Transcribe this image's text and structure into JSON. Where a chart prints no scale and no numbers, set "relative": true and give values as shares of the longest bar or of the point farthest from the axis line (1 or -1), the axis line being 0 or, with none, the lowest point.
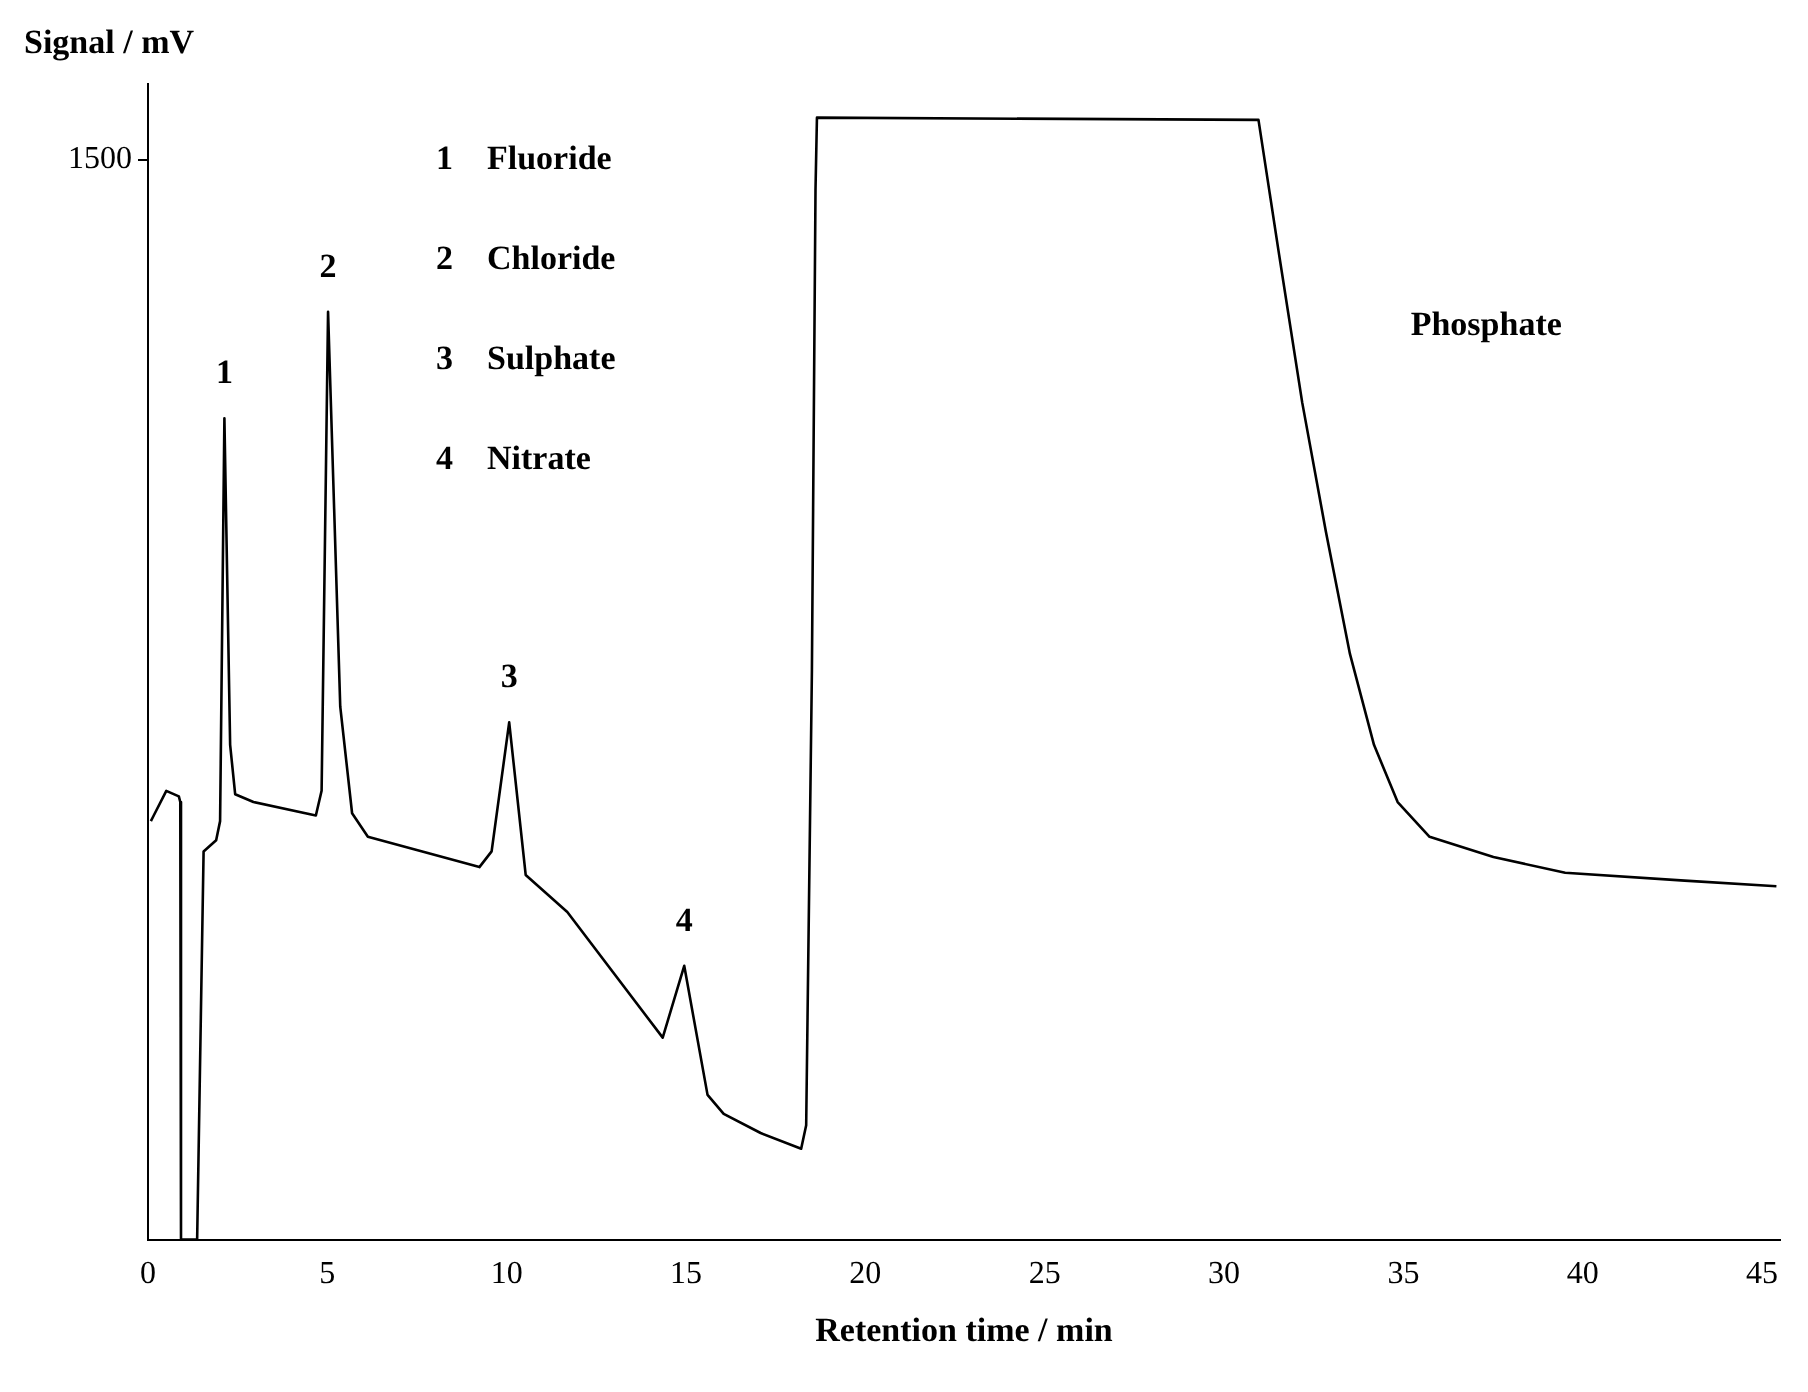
{
  "chart_data": {
    "type": "line",
    "xlabel": "Retention time / min",
    "ylabel": "Signal / mV",
    "relative": true,
    "legend": false,
    "grid": false,
    "marker": "none",
    "xlim": [
      0,
      45.5
    ],
    "xticks": [
      0,
      5,
      10,
      15,
      20,
      25,
      30,
      35,
      40,
      45
    ],
    "series": [
      {
        "color": "#000000",
        "x": [
          0.08,
          0.16,
          0.51,
          0.86,
          0.9,
          0.92,
          1.37,
          1.55,
          1.9,
          2.01,
          2.13,
          2.29,
          2.43,
          2.94,
          4.68,
          4.84,
          5.02,
          5.36,
          5.69,
          6.13,
          9.24,
          9.58,
          10.07,
          10.53,
          11.69,
          14.35,
          14.95,
          15.6,
          16.05,
          17.08,
          18.21,
          18.35,
          18.51,
          18.61,
          18.65,
          30.96,
          31.52,
          32.18,
          32.84,
          33.51,
          34.18,
          34.84,
          35.73,
          37.51,
          39.51,
          42.84,
          45.4
        ],
        "values": [
          0.373,
          0.378,
          0.4,
          0.395,
          0.39,
          0,
          0,
          0.346,
          0.356,
          0.373,
          0.732,
          0.441,
          0.397,
          0.39,
          0.378,
          0.4,
          0.827,
          0.475,
          0.38,
          0.359,
          0.332,
          0.346,
          0.461,
          0.325,
          0.292,
          0.18,
          0.244,
          0.129,
          0.112,
          0.095,
          0.081,
          0.102,
          0.508,
          0.936,
          1,
          0.998,
          0.881,
          0.746,
          0.631,
          0.522,
          0.441,
          0.39,
          0.359,
          0.341,
          0.327,
          0.32,
          0.315
        ]
      }
    ],
    "annotations": [
      "1500",
      "1    Fluoride",
      "2    Chloride",
      "3    Sulphate",
      "4    Nitrate",
      "Phosphate",
      {
        "text": "1",
        "x": 2.13,
        "y": 0.732
      },
      {
        "text": "2",
        "x": 5.02,
        "y": 0.827
      },
      {
        "text": "3",
        "x": 10.07,
        "y": 0.461
      },
      {
        "text": "4",
        "x": 14.95,
        "y": 0.244
      }
    ]
  }
}
